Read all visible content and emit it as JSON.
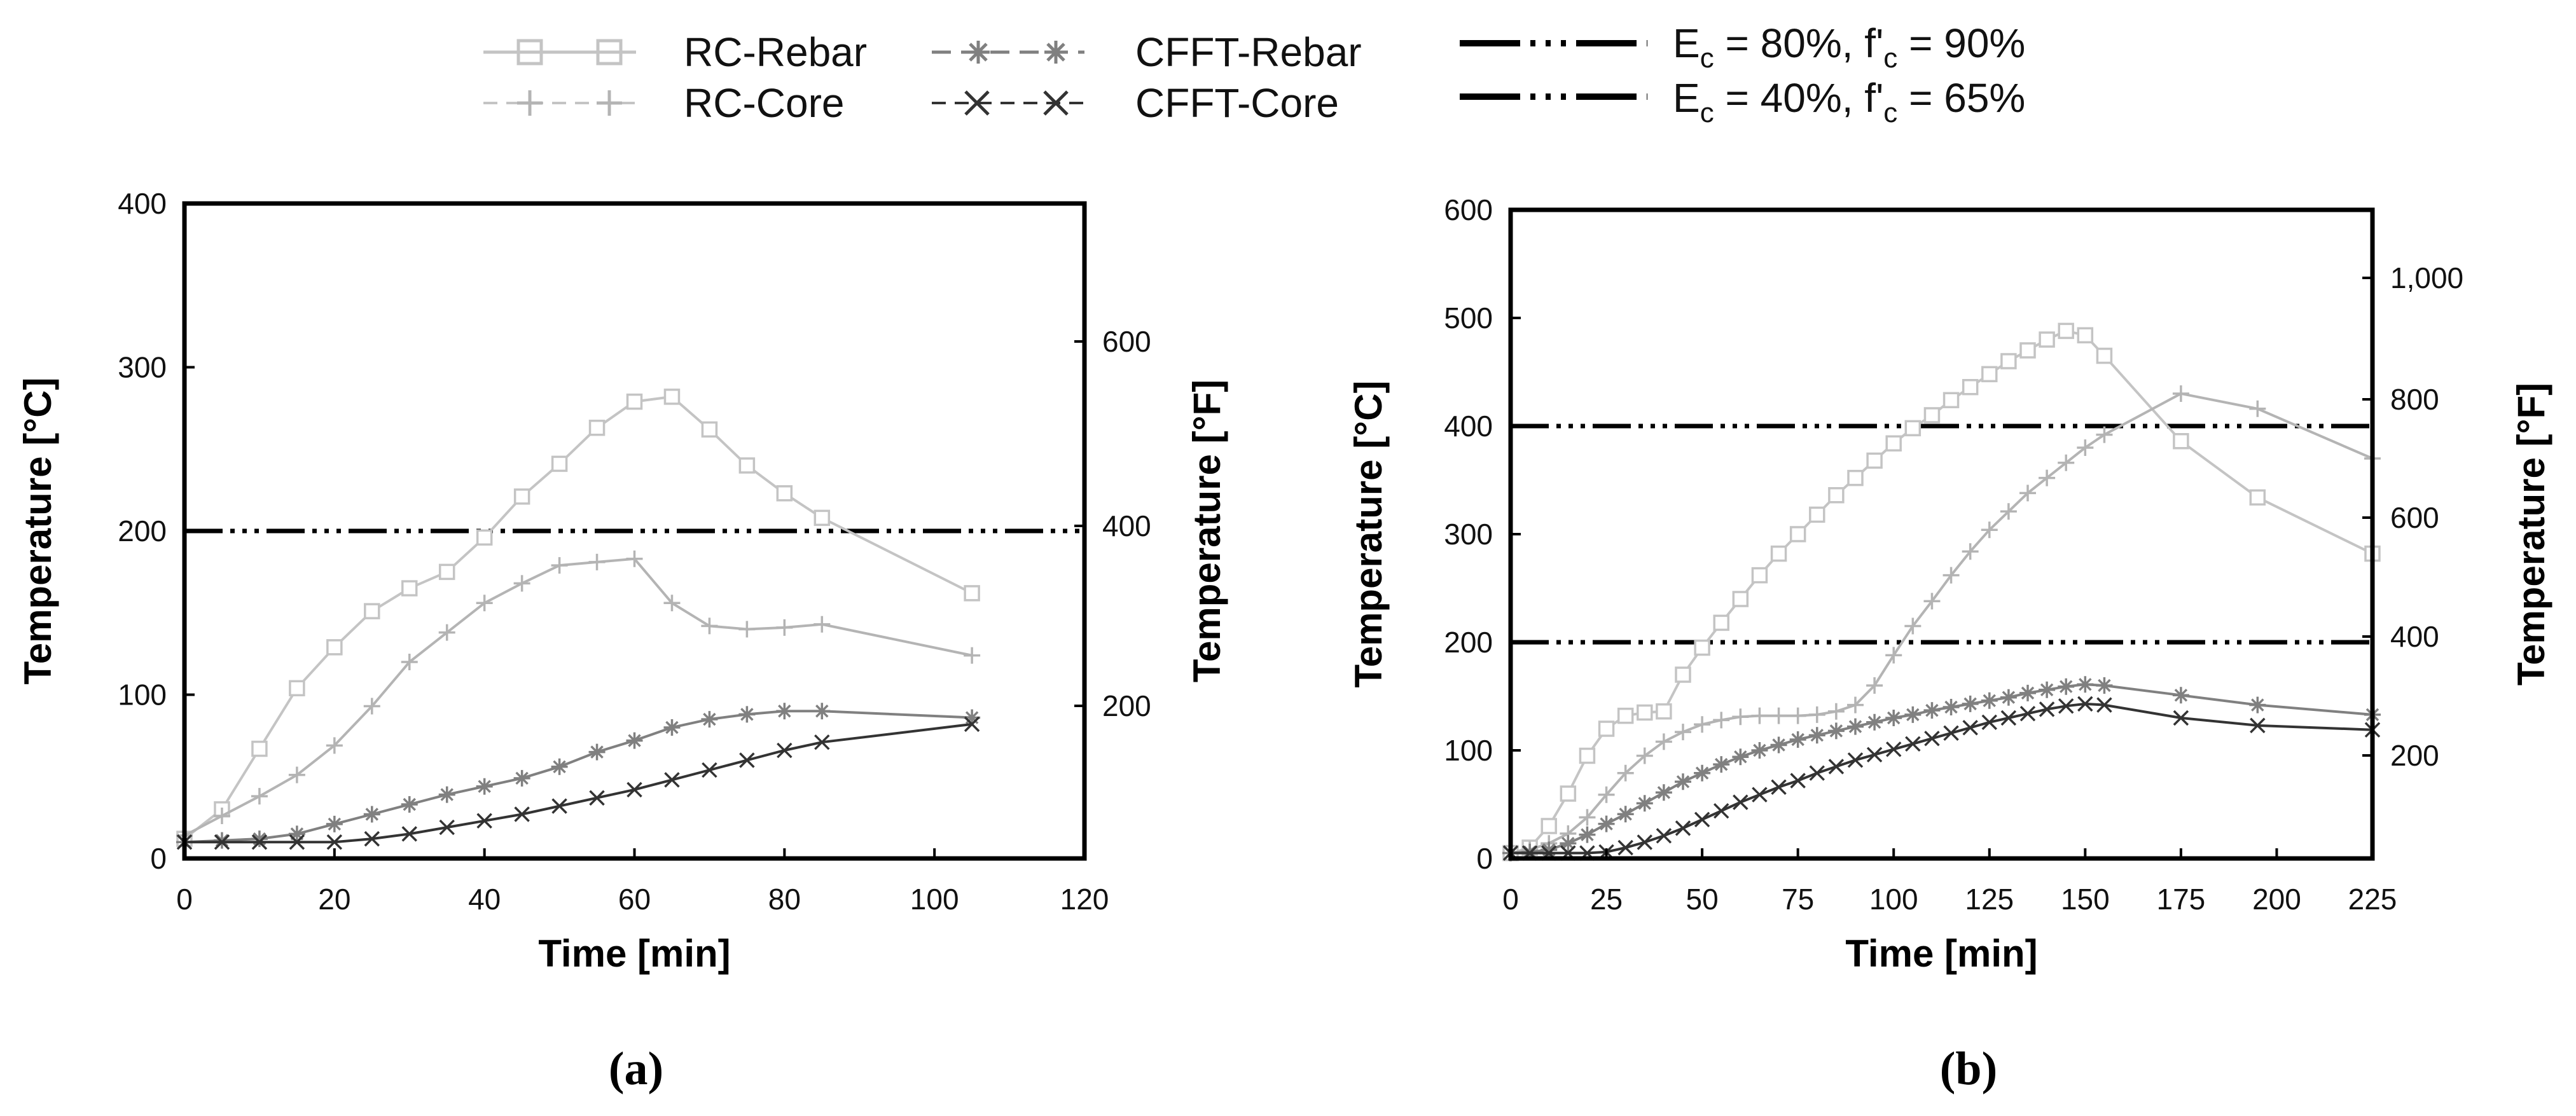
{
  "legend": {
    "rc_rebar": "RC-Rebar",
    "rc_core": "RC-Core",
    "cfft_rebar": "CFFT-Rebar",
    "cfft_core": "CFFT-Core",
    "line1": {
      "a": "E",
      "b": "c",
      "c": " = 80%, f'",
      "d": "c",
      "e": " = 90%"
    },
    "line2": {
      "a": "E",
      "b": "c",
      "c": " = 40%, f'",
      "d": "c",
      "e": " = 65%"
    }
  },
  "chart_data": [
    {
      "type": "line",
      "panel_label": "(a)",
      "xlabel": "Time [min]",
      "ylabel": "Temperature [°C]",
      "ylabel_right": "Temperature [°F]",
      "xlim": [
        0,
        120
      ],
      "ylim": [
        0,
        400
      ],
      "xticks": [
        0,
        20,
        40,
        60,
        80,
        100,
        120
      ],
      "yticks": [
        0,
        100,
        200,
        300,
        400
      ],
      "yticks_right": [
        200,
        400,
        600
      ],
      "threshold_lines": [
        200
      ],
      "series": [
        {
          "name": "RC-Rebar",
          "color": "#c4c4c4",
          "marker": "square",
          "x": [
            0,
            5,
            10,
            15,
            20,
            25,
            30,
            35,
            40,
            45,
            50,
            55,
            60,
            65,
            70,
            75,
            80,
            85,
            105
          ],
          "y": [
            12,
            30,
            67,
            104,
            129,
            151,
            165,
            175,
            196,
            221,
            241,
            263,
            279,
            282,
            262,
            240,
            223,
            208,
            162
          ]
        },
        {
          "name": "RC-Core",
          "color": "#b4b4b4",
          "marker": "plus",
          "x": [
            0,
            5,
            10,
            15,
            20,
            25,
            30,
            35,
            40,
            45,
            50,
            55,
            60,
            65,
            70,
            75,
            80,
            85,
            105
          ],
          "y": [
            14,
            26,
            38,
            51,
            69,
            93,
            120,
            138,
            156,
            168,
            179,
            181,
            183,
            156,
            142,
            140,
            141,
            143,
            124
          ]
        },
        {
          "name": "CFFT-Rebar",
          "color": "#808080",
          "marker": "asterisk",
          "x": [
            0,
            5,
            10,
            15,
            20,
            25,
            30,
            35,
            40,
            45,
            50,
            55,
            60,
            65,
            70,
            75,
            80,
            85,
            105
          ],
          "y": [
            10,
            11,
            12,
            15,
            21,
            27,
            33,
            39,
            44,
            49,
            56,
            65,
            72,
            80,
            85,
            88,
            90,
            90,
            86
          ]
        },
        {
          "name": "CFFT-Core",
          "color": "#333333",
          "marker": "x",
          "x": [
            0,
            5,
            10,
            15,
            20,
            25,
            30,
            35,
            40,
            45,
            50,
            55,
            60,
            65,
            70,
            75,
            80,
            85,
            105
          ],
          "y": [
            10,
            10,
            10,
            10,
            10,
            12,
            15,
            19,
            23,
            27,
            32,
            37,
            42,
            48,
            54,
            60,
            66,
            71,
            82
          ]
        }
      ]
    },
    {
      "type": "line",
      "panel_label": "(b)",
      "xlabel": "Time [min]",
      "ylabel": "Temperature [°C]",
      "ylabel_right": "Temperature [°F]",
      "xlim": [
        0,
        225
      ],
      "ylim": [
        0,
        600
      ],
      "xticks": [
        0,
        25,
        50,
        75,
        100,
        125,
        150,
        175,
        200,
        225
      ],
      "yticks": [
        0,
        100,
        200,
        300,
        400,
        500,
        600
      ],
      "yticks_right": [
        200,
        400,
        600,
        800,
        "1,000"
      ],
      "threshold_lines": [
        400,
        200
      ],
      "series": [
        {
          "name": "RC-Rebar",
          "color": "#c4c4c4",
          "marker": "square",
          "x": [
            0,
            5,
            10,
            15,
            20,
            25,
            30,
            35,
            40,
            45,
            50,
            55,
            60,
            65,
            70,
            75,
            80,
            85,
            90,
            95,
            100,
            105,
            110,
            115,
            120,
            125,
            130,
            135,
            140,
            145,
            150,
            155,
            175,
            195,
            225
          ],
          "y": [
            5,
            10,
            30,
            60,
            95,
            120,
            132,
            135,
            136,
            170,
            195,
            218,
            240,
            262,
            282,
            300,
            318,
            336,
            352,
            368,
            384,
            398,
            410,
            424,
            436,
            448,
            460,
            470,
            480,
            488,
            484,
            465,
            386,
            334,
            282
          ]
        },
        {
          "name": "RC-Core",
          "color": "#b4b4b4",
          "marker": "plus",
          "x": [
            0,
            5,
            10,
            15,
            20,
            25,
            30,
            35,
            40,
            45,
            50,
            55,
            60,
            65,
            70,
            75,
            80,
            85,
            90,
            95,
            100,
            105,
            110,
            115,
            120,
            125,
            130,
            135,
            140,
            145,
            150,
            155,
            175,
            195,
            225
          ],
          "y": [
            5,
            8,
            14,
            23,
            38,
            59,
            79,
            95,
            108,
            117,
            124,
            128,
            131,
            132,
            132,
            132,
            133,
            136,
            142,
            160,
            188,
            215,
            238,
            262,
            284,
            304,
            321,
            338,
            352,
            366,
            380,
            392,
            430,
            416,
            370
          ]
        },
        {
          "name": "CFFT-Rebar",
          "color": "#808080",
          "marker": "asterisk",
          "x": [
            0,
            5,
            10,
            15,
            20,
            25,
            30,
            35,
            40,
            45,
            50,
            55,
            60,
            65,
            70,
            75,
            80,
            85,
            90,
            95,
            100,
            105,
            110,
            115,
            120,
            125,
            130,
            135,
            140,
            145,
            150,
            155,
            175,
            195,
            225
          ],
          "y": [
            5,
            6,
            8,
            14,
            22,
            32,
            41,
            51,
            61,
            71,
            79,
            87,
            94,
            100,
            105,
            110,
            114,
            118,
            122,
            126,
            130,
            133,
            137,
            140,
            143,
            146,
            149,
            153,
            156,
            159,
            161,
            160,
            151,
            142,
            133
          ]
        },
        {
          "name": "CFFT-Core",
          "color": "#333333",
          "marker": "x",
          "x": [
            0,
            5,
            10,
            15,
            20,
            25,
            30,
            35,
            40,
            45,
            50,
            55,
            60,
            65,
            70,
            75,
            80,
            85,
            90,
            95,
            100,
            105,
            110,
            115,
            120,
            125,
            130,
            135,
            140,
            145,
            150,
            155,
            175,
            195,
            225
          ],
          "y": [
            5,
            5,
            5,
            5,
            5,
            6,
            10,
            15,
            21,
            28,
            36,
            44,
            52,
            59,
            66,
            72,
            79,
            85,
            91,
            96,
            101,
            106,
            111,
            116,
            121,
            126,
            130,
            134,
            138,
            141,
            143,
            142,
            130,
            123,
            119
          ]
        }
      ]
    }
  ]
}
